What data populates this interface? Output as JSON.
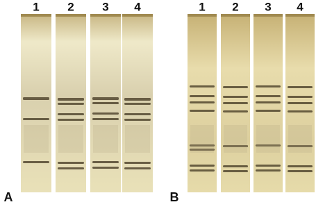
{
  "panels": [
    {
      "label": "A",
      "lanes": [
        "1",
        "2",
        "3",
        "4"
      ]
    },
    {
      "label": "B",
      "lanes": [
        "1",
        "2",
        "3",
        "4"
      ]
    }
  ]
}
